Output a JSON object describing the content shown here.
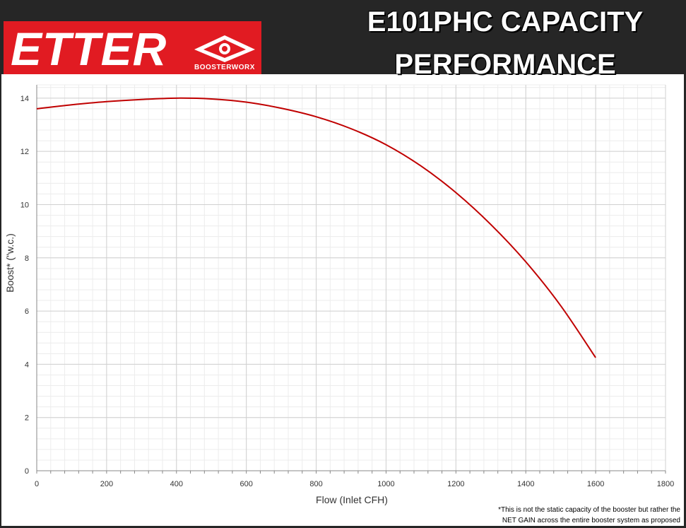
{
  "header": {
    "logo_text": "ETTER",
    "logo_subtext": "BOOSTERWORX",
    "title_line1": "E101PHC CAPACITY",
    "title_line2": "PERFORMANCE"
  },
  "colors": {
    "header_bg": "#262626",
    "logo_red": "#e11b22",
    "curve": "#c00000"
  },
  "chart_data": {
    "type": "line",
    "title": "E101PHC CAPACITY PERFORMANCE",
    "xlabel": "Flow (Inlet CFH)",
    "ylabel": "Boost* (\"w.c.)",
    "xlim": [
      0,
      1800
    ],
    "ylim": [
      0,
      14.5
    ],
    "xticks": [
      0,
      200,
      400,
      600,
      800,
      1000,
      1200,
      1400,
      1600,
      1800
    ],
    "yticks": [
      0,
      2,
      4,
      6,
      8,
      10,
      12,
      14
    ],
    "grid": true,
    "series": [
      {
        "x": [
          0,
          100,
          200,
          300,
          400,
          500,
          600,
          700,
          800,
          900,
          1000,
          1100,
          1200,
          1300,
          1400,
          1500,
          1600
        ],
        "y": [
          13.6,
          13.75,
          13.87,
          13.95,
          14.0,
          13.97,
          13.85,
          13.62,
          13.3,
          12.85,
          12.25,
          11.45,
          10.45,
          9.25,
          7.85,
          6.2,
          4.25
        ]
      }
    ]
  },
  "footnote": {
    "line1": "*This is not the static capacity of the booster but rather the",
    "line2": "NET GAIN across the entire booster system as proposed"
  }
}
